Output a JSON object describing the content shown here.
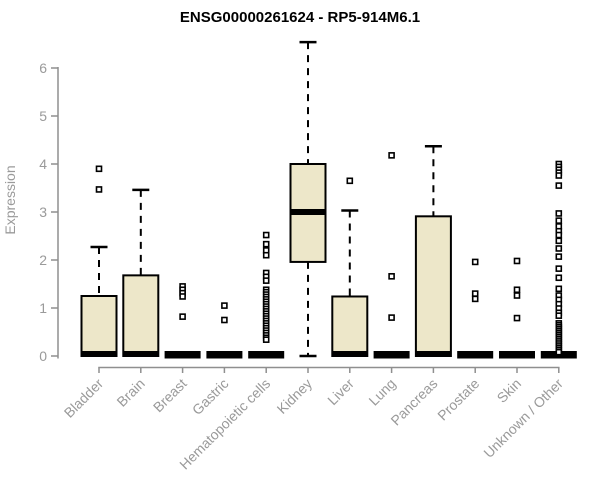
{
  "colors": {
    "background": "#ffffff",
    "box_fill": "#ede7c9",
    "box_stroke": "#000000",
    "median_color": "#000000",
    "whisker_color": "#000000",
    "outlier_fill": "#ffffff",
    "outlier_stroke": "#000000",
    "axis_line": "#8f8f8f",
    "axis_text": "#9a9a9a",
    "title_color": "#000000"
  },
  "chart_data": {
    "type": "boxplot",
    "title": "ENSG00000261624 - RP5-914M6.1",
    "xlabel": "",
    "ylabel": "Expression",
    "ylim": [
      0,
      6.6
    ],
    "yticks": [
      0,
      1,
      2,
      3,
      4,
      5,
      6
    ],
    "grid": false,
    "legend": false,
    "categories": [
      "Bladder",
      "Brain",
      "Breast",
      "Gastric",
      "Hematopoietic cells",
      "Kidney",
      "Liver",
      "Lung",
      "Pancreas",
      "Prostate",
      "Skin",
      "Unknown / Other"
    ],
    "boxes": [
      {
        "label": "Bladder",
        "q1": 0,
        "median": 0,
        "q3": 1.25,
        "whisker_low": 0,
        "whisker_high": 2.27,
        "outliers": [
          3.9,
          3.47
        ]
      },
      {
        "label": "Brain",
        "q1": 0,
        "median": 0,
        "q3": 1.68,
        "whisker_low": 0,
        "whisker_high": 3.46,
        "outliers": []
      },
      {
        "label": "Breast",
        "q1": 0,
        "median": 0,
        "q3": 0,
        "whisker_low": 0,
        "whisker_high": 0,
        "outliers": [
          1.45,
          1.38,
          1.31,
          1.24,
          0.82
        ]
      },
      {
        "label": "Gastric",
        "q1": 0,
        "median": 0,
        "q3": 0,
        "whisker_low": 0,
        "whisker_high": 0,
        "outliers": [
          1.05,
          0.75
        ]
      },
      {
        "label": "Hematopoietic cells",
        "q1": 0,
        "median": 0,
        "q3": 0,
        "whisker_low": 0,
        "whisker_high": 0,
        "outliers": [
          2.52,
          2.33,
          2.2,
          2.1,
          1.73,
          1.65,
          1.57,
          1.38,
          1.33,
          1.28,
          1.23,
          1.18,
          1.13,
          1.08,
          1.03,
          0.98,
          0.93,
          0.88,
          0.83,
          0.78,
          0.73,
          0.68,
          0.63,
          0.58,
          0.53,
          0.48,
          0.43,
          0.38,
          0.34
        ]
      },
      {
        "label": "Kidney",
        "q1": 1.96,
        "median": 3.0,
        "q3": 4.0,
        "whisker_low": 0,
        "whisker_high": 6.54,
        "outliers": []
      },
      {
        "label": "Liver",
        "q1": 0,
        "median": 0,
        "q3": 1.24,
        "whisker_low": 0,
        "whisker_high": 3.03,
        "outliers": [
          3.65
        ]
      },
      {
        "label": "Lung",
        "q1": 0,
        "median": 0,
        "q3": 0,
        "whisker_low": 0,
        "whisker_high": 0,
        "outliers": [
          4.18,
          1.66,
          0.8
        ]
      },
      {
        "label": "Pancreas",
        "q1": 0,
        "median": 0,
        "q3": 2.91,
        "whisker_low": 0,
        "whisker_high": 4.37,
        "outliers": []
      },
      {
        "label": "Prostate",
        "q1": 0,
        "median": 0,
        "q3": 0,
        "whisker_low": 0,
        "whisker_high": 0,
        "outliers": [
          1.96,
          1.3,
          1.19
        ]
      },
      {
        "label": "Skin",
        "q1": 0,
        "median": 0,
        "q3": 0,
        "whisker_low": 0,
        "whisker_high": 0,
        "outliers": [
          1.98,
          1.38,
          1.26,
          0.79
        ]
      },
      {
        "label": "Unknown / Other",
        "q1": 0,
        "median": 0,
        "q3": 0,
        "whisker_low": 0,
        "whisker_high": 0,
        "outliers": [
          4.0,
          3.94,
          3.88,
          3.82,
          3.76,
          3.55,
          2.97,
          2.82,
          2.7,
          2.6,
          2.52,
          2.4,
          2.24,
          2.07,
          1.82,
          1.63,
          1.4,
          1.26,
          1.17,
          1.08,
          0.99,
          0.9,
          0.84,
          0.68,
          0.64,
          0.6,
          0.56,
          0.52,
          0.48,
          0.44,
          0.4,
          0.36,
          0.32,
          0.28,
          0.24,
          0.2,
          0.16,
          0.12,
          0.08
        ]
      }
    ]
  }
}
